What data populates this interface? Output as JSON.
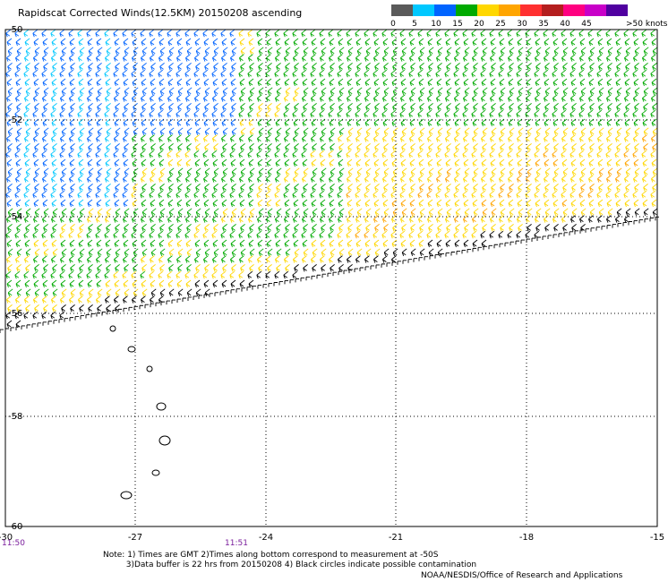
{
  "title": "Rapidscat Corrected Winds(12.5KM) 20150208 ascending",
  "legend": {
    "colors": [
      "#5a5a5a",
      "#00c8ff",
      "#0064ff",
      "#00aa00",
      "#ffd700",
      "#ffa500",
      "#ff3030",
      "#b41e1e",
      "#ff0080",
      "#c800c8",
      "#5000a0"
    ],
    "ticks": [
      "0",
      "5",
      "10",
      "15",
      "20",
      "25",
      "30",
      "35",
      "40",
      "45",
      ">50 knots"
    ]
  },
  "axes": {
    "lat_labels": [
      "-50",
      "-52",
      "-54",
      "-56",
      "-58",
      "-60"
    ],
    "lon_labels": [
      "-30",
      "-27",
      "-24",
      "-21",
      "-18",
      "-15"
    ]
  },
  "times": {
    "left": "11:50",
    "middle": "11:51"
  },
  "notes": "Note: 1) Times are GMT 2)Times along bottom correspond to measurement at -50S\n         3)Data buffer is 22 hrs from 20150208 4) Black circles indicate possible contamination",
  "credit": "NOAA/NESDIS/Office of Research and Applications"
}
